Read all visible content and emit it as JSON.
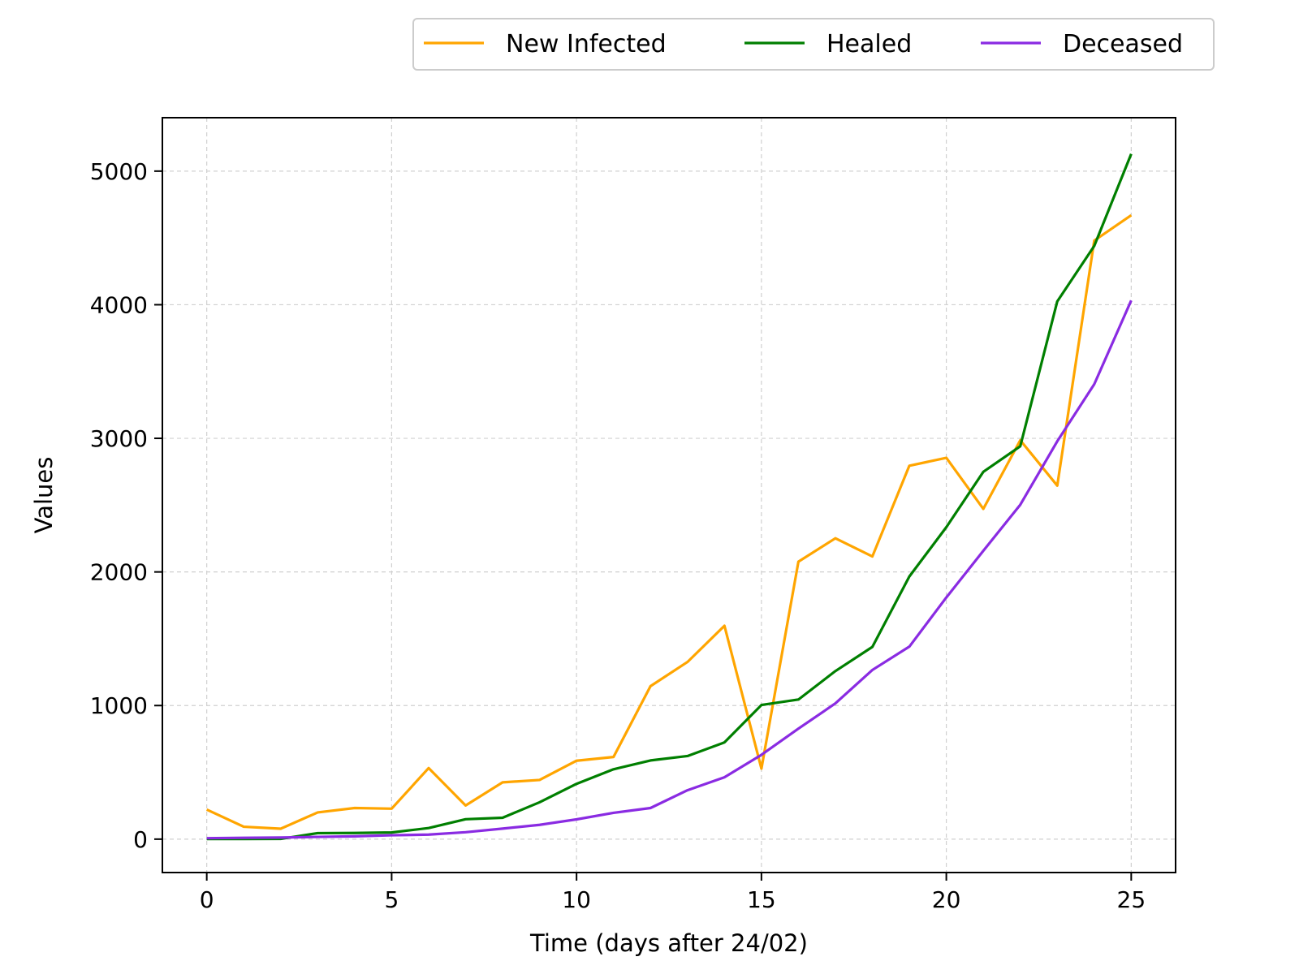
{
  "chart_data": {
    "type": "line",
    "xlabel": "Time (days after 24/02)",
    "ylabel": "Values",
    "xlim": [
      -1.2,
      26.2
    ],
    "ylim": [
      -250,
      5400
    ],
    "xticks": [
      0,
      5,
      10,
      15,
      20,
      25
    ],
    "yticks": [
      0,
      1000,
      2000,
      3000,
      4000,
      5000
    ],
    "grid": true,
    "legend_position": "top-right, above plot",
    "x": [
      0,
      1,
      2,
      3,
      4,
      5,
      6,
      7,
      8,
      9,
      10,
      11,
      12,
      13,
      14,
      15,
      16,
      17,
      18,
      19,
      20,
      21,
      22,
      23,
      24,
      25
    ],
    "series": [
      {
        "name": "New Infected",
        "color": "#FFA500",
        "values": [
          221,
          93,
          78,
          200,
          233,
          228,
          532,
          252,
          425,
          443,
          587,
          615,
          1145,
          1326,
          1597,
          528,
          2077,
          2252,
          2116,
          2795,
          2854,
          2472,
          2986,
          2646,
          4480,
          4670
        ]
      },
      {
        "name": "Healed",
        "color": "#007F00",
        "values": [
          1,
          1,
          2,
          45,
          46,
          50,
          83,
          149,
          160,
          276,
          414,
          523,
          589,
          622,
          724,
          1004,
          1045,
          1258,
          1439,
          1966,
          2335,
          2749,
          2941,
          4025,
          4440,
          5129
        ]
      },
      {
        "name": "Deceased",
        "color": "#8A2BE2",
        "values": [
          7,
          10,
          12,
          17,
          21,
          29,
          34,
          52,
          79,
          107,
          148,
          197,
          233,
          366,
          463,
          631,
          827,
          1016,
          1266,
          1441,
          1809,
          2158,
          2503,
          2978,
          3405,
          4032
        ]
      }
    ]
  }
}
